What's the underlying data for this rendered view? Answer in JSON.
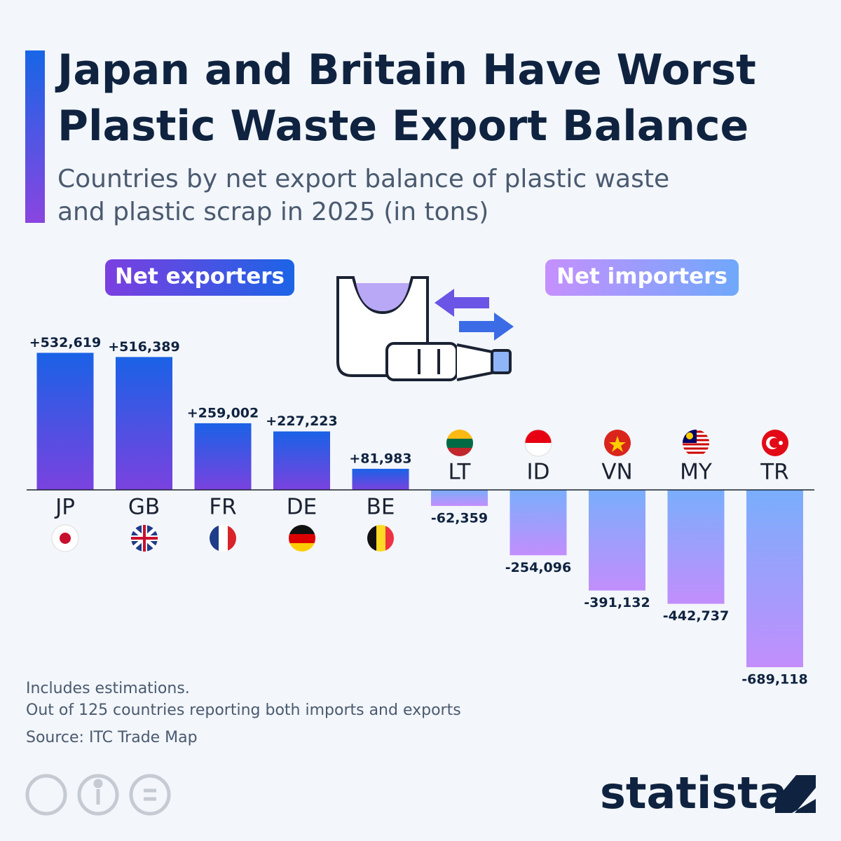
{
  "chart_data": {
    "type": "bar",
    "title": "Japan and Britain Have Worst Plastic Waste Export Balance",
    "subtitle": "Countries by net export balance of plastic waste and plastic scrap in 2025 (in tons)",
    "group_labels": [
      "Net exporters",
      "Net importers"
    ],
    "categories": [
      "JP",
      "GB",
      "FR",
      "DE",
      "BE",
      "LT",
      "ID",
      "VN",
      "MY",
      "TR"
    ],
    "values": [
      532619,
      516389,
      259002,
      227223,
      81983,
      -62359,
      -254096,
      -391132,
      -442737,
      -689118
    ],
    "value_labels": [
      "+532,619",
      "+516,389",
      "+259,002",
      "+227,223",
      "+81,983",
      "-62,359",
      "-254,096",
      "-391,132",
      "-442,737",
      "-689,118"
    ],
    "notes": [
      "Includes estimations.",
      "Out of 125 countries reporting both imports and exports",
      "Source: ITC Trade Map"
    ],
    "brand": "statista"
  }
}
